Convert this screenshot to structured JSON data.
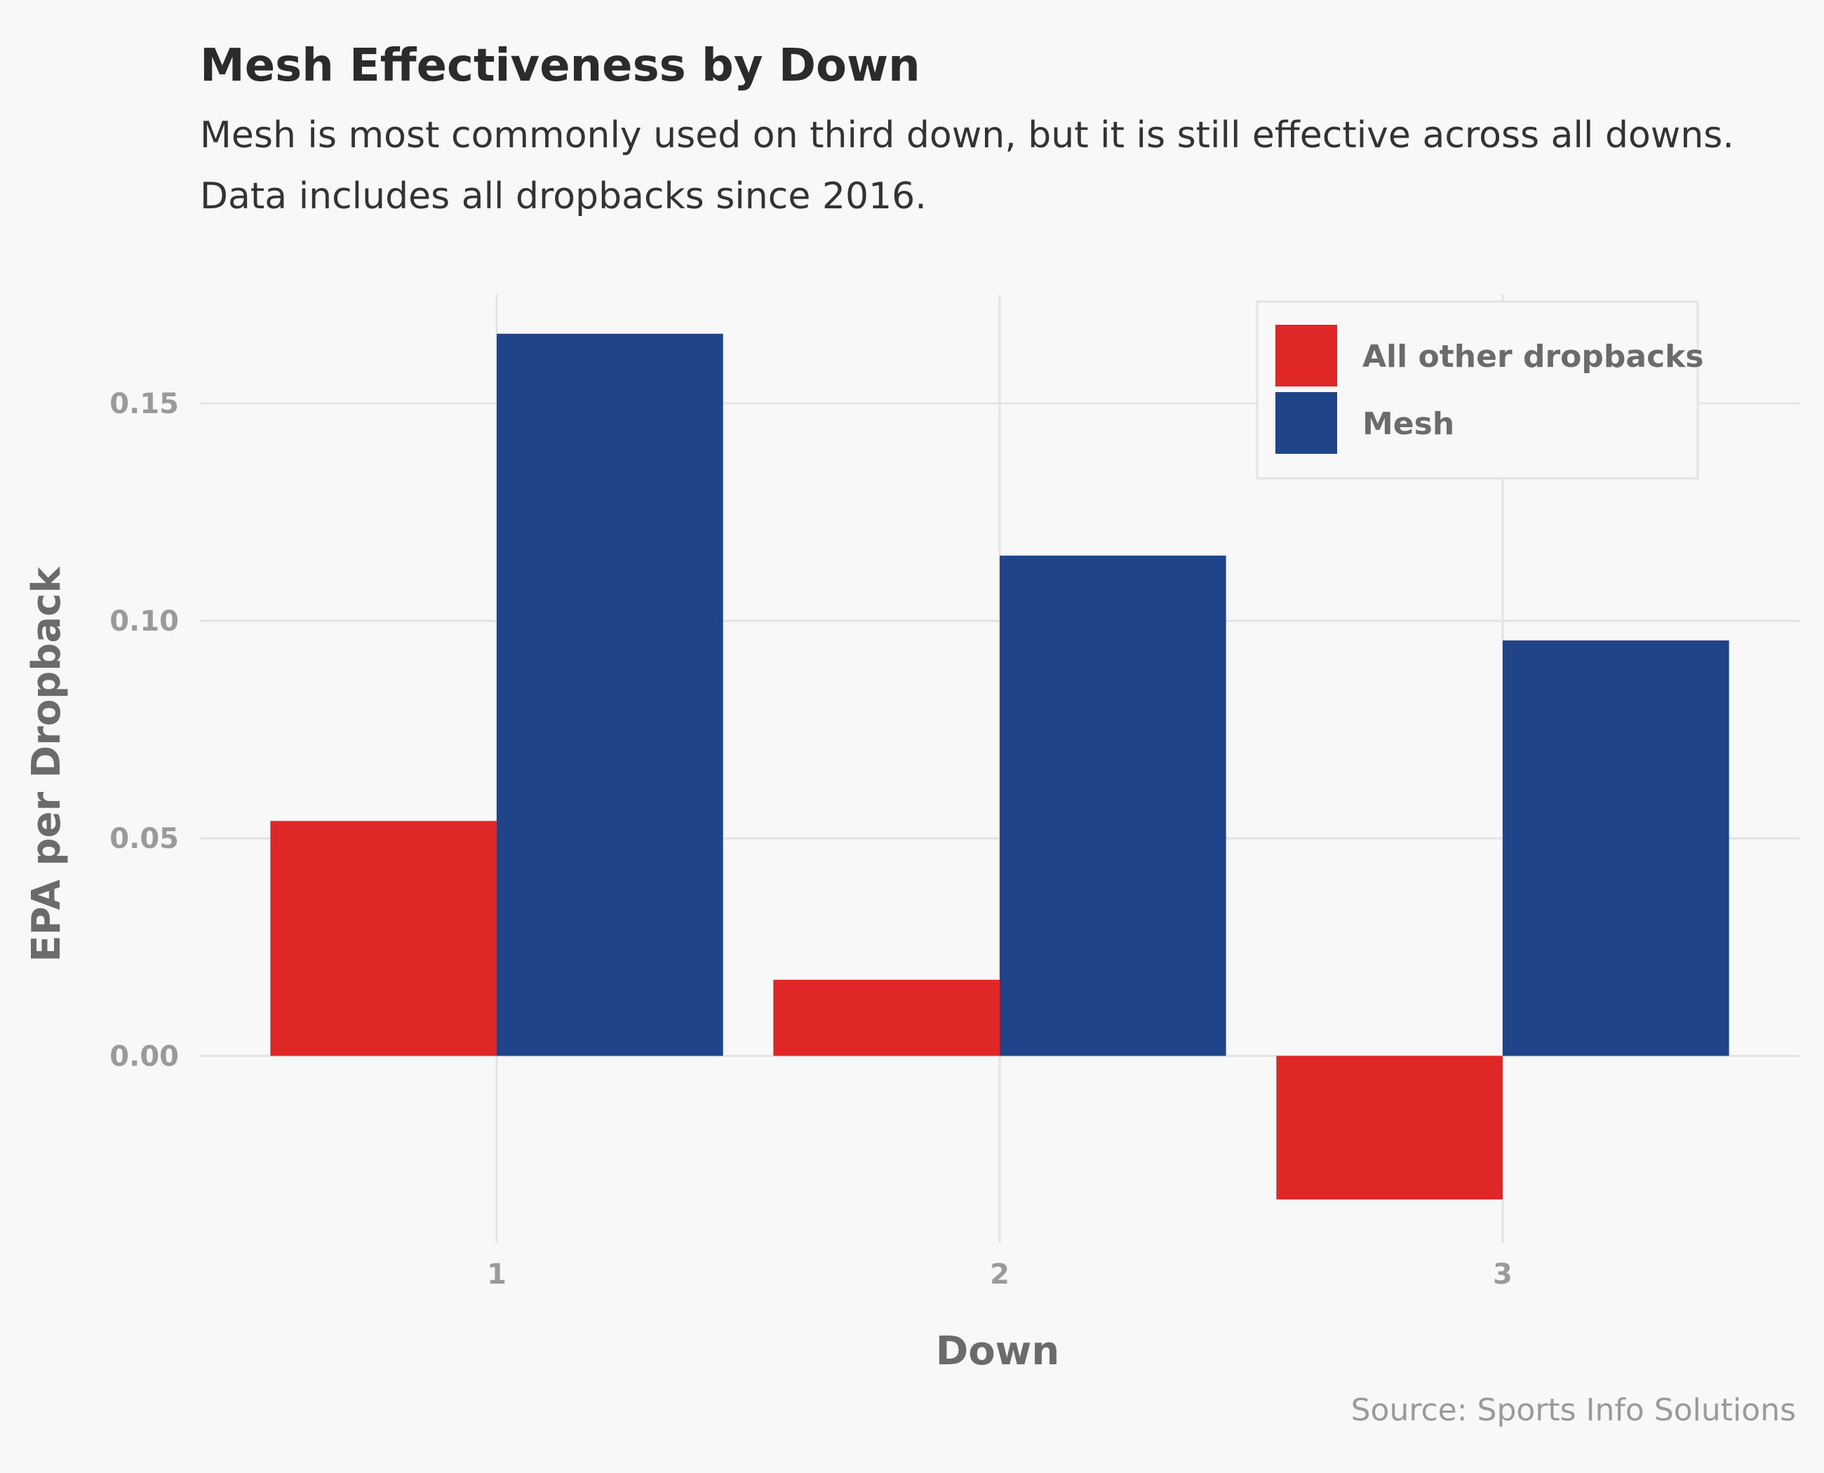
{
  "chart_data": {
    "type": "bar",
    "title": "Mesh Effectiveness by Down",
    "subtitle_lines": [
      "Mesh is most commonly used on third down, but it is still effective across all downs.",
      "Data includes all dropbacks since 2016."
    ],
    "xlabel": "Down",
    "ylabel": "EPA per Dropback",
    "caption": "Source: Sports Info Solutions",
    "categories": [
      "1",
      "2",
      "3"
    ],
    "series": [
      {
        "name": "All other dropbacks",
        "values": [
          0.054,
          0.0175,
          -0.033
        ],
        "color": "#e02728"
      },
      {
        "name": "Mesh",
        "values": [
          0.166,
          0.115,
          0.0955
        ],
        "color": "#1f448a"
      }
    ],
    "yticks": [
      "0.00",
      "0.05",
      "0.10",
      "0.15"
    ],
    "ylim": [
      -0.043,
      0.175
    ],
    "grid": true,
    "legend_position": "top-right"
  }
}
